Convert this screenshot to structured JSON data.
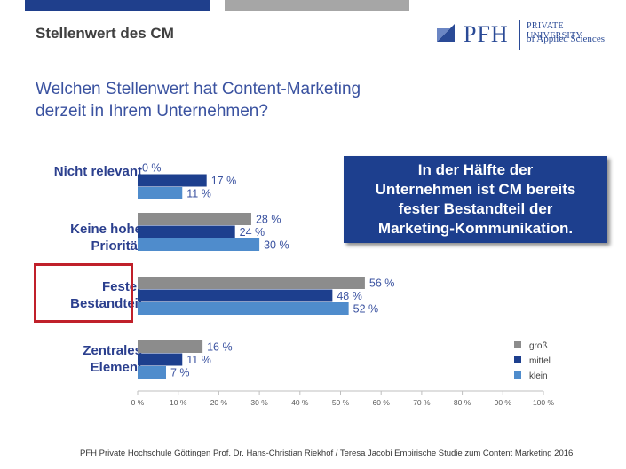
{
  "header": {
    "title": "Stellenwert des CM"
  },
  "logo": {
    "name": "PFH",
    "line1": "PRIVATE UNIVERSITY",
    "line2": "of Applied Sciences"
  },
  "question": {
    "line1": "Welchen Stellenwert hat Content-Marketing",
    "line2": "derzeit in Ihrem Unternehmen?"
  },
  "callout": {
    "line1": "In der Hälfte der",
    "line2": "Unternehmen ist CM bereits",
    "line3": "fester Bestandteil der",
    "line4": "Marketing-Kommunikation."
  },
  "category_labels": [
    {
      "line1": "Nicht relevant",
      "line2": ""
    },
    {
      "line1": "Keine hohe",
      "line2": "Priorität"
    },
    {
      "line1": "Fester",
      "line2": "Bestandteil"
    },
    {
      "line1": "Zentrales",
      "line2": "Element"
    }
  ],
  "footer": {
    "text": "PFH Private Hochschule Göttingen Prof. Dr. Hans-Christian Riekhof / Teresa Jacobi Empirische Studie zum Content Marketing  2016"
  },
  "chart_data": {
    "type": "bar",
    "orientation": "horizontal",
    "categories": [
      "Nicht relevant",
      "Keine hohe Priorität",
      "Fester Bestandteil",
      "Zentrales Element"
    ],
    "series": [
      {
        "name": "groß",
        "color": "#8c8c8c",
        "values": [
          0,
          28,
          56,
          16
        ],
        "labels": [
          "0 %",
          "28 %",
          "56 %",
          "16 %"
        ]
      },
      {
        "name": "mittel",
        "color": "#1d3f8e",
        "values": [
          17,
          24,
          48,
          11
        ],
        "labels": [
          "17 %",
          "24 %",
          "48 %",
          "11 %"
        ]
      },
      {
        "name": "klein",
        "color": "#4f8ccc",
        "values": [
          11,
          30,
          52,
          7
        ],
        "labels": [
          "11 %",
          "30 %",
          "52 %",
          "7 %"
        ]
      }
    ],
    "xlim": [
      0,
      100
    ],
    "xticks": [
      "0 %",
      "10 %",
      "20 %",
      "30 %",
      "40 %",
      "50 %",
      "60 %",
      "70 %",
      "80 %",
      "90 %",
      "100 %"
    ],
    "grid": false,
    "legend_position": "bottom-right",
    "highlighted_category": "Fester Bestandteil"
  }
}
